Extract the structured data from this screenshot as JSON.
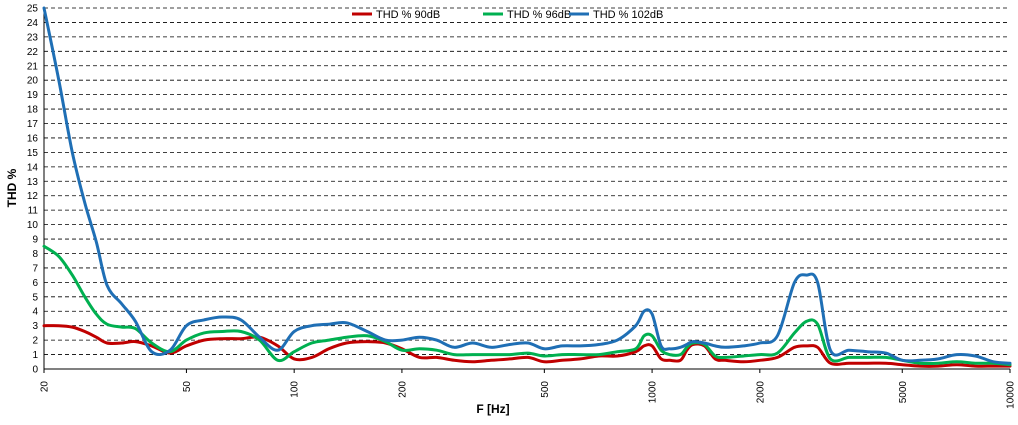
{
  "chart_data": {
    "type": "line",
    "xlabel": "F [Hz]",
    "ylabel": "THD %",
    "xscale": "log",
    "xlim": [
      20,
      10000
    ],
    "ylim": [
      0,
      25
    ],
    "x_ticks": [
      "20",
      "50",
      "100",
      "200",
      "500",
      "1000",
      "2000",
      "5000",
      "10000"
    ],
    "y_ticks": [
      "0",
      "1",
      "2",
      "3",
      "4",
      "5",
      "6",
      "7",
      "8",
      "9",
      "10",
      "11",
      "12",
      "13",
      "14",
      "15",
      "16",
      "17",
      "18",
      "19",
      "20",
      "21",
      "22",
      "23",
      "24",
      "25"
    ],
    "grid": true,
    "legend_position": "top",
    "series": [
      {
        "name": "THD % 90dB",
        "color": "#c00000",
        "x": [
          20,
          22,
          24,
          26,
          28,
          30,
          33,
          36,
          40,
          45,
          50,
          56,
          63,
          71,
          80,
          90,
          100,
          112,
          125,
          140,
          160,
          180,
          200,
          224,
          250,
          280,
          315,
          355,
          400,
          450,
          500,
          560,
          630,
          710,
          800,
          900,
          950,
          1000,
          1060,
          1120,
          1200,
          1250,
          1300,
          1400,
          1500,
          1600,
          1800,
          2000,
          2240,
          2500,
          2700,
          2900,
          3150,
          3550,
          4000,
          4500,
          5000,
          5600,
          6300,
          7100,
          8000,
          9000,
          10000
        ],
        "y": [
          3.0,
          3.0,
          2.9,
          2.6,
          2.2,
          1.8,
          1.8,
          1.9,
          1.6,
          1.1,
          1.6,
          2.0,
          2.1,
          2.1,
          2.2,
          1.6,
          0.7,
          0.8,
          1.4,
          1.8,
          1.9,
          1.8,
          1.4,
          0.8,
          0.8,
          0.6,
          0.5,
          0.6,
          0.7,
          0.8,
          0.5,
          0.6,
          0.7,
          0.9,
          0.9,
          1.2,
          1.6,
          1.6,
          0.7,
          0.6,
          0.6,
          1.3,
          1.7,
          1.6,
          0.7,
          0.6,
          0.5,
          0.6,
          0.8,
          1.5,
          1.6,
          1.5,
          0.4,
          0.4,
          0.4,
          0.4,
          0.3,
          0.2,
          0.2,
          0.3,
          0.2,
          0.2,
          0.2
        ]
      },
      {
        "name": "THD % 96dB",
        "color": "#00b050",
        "x": [
          20,
          22,
          24,
          26,
          28,
          30,
          33,
          36,
          40,
          45,
          50,
          56,
          63,
          71,
          80,
          90,
          100,
          112,
          125,
          140,
          160,
          180,
          200,
          224,
          250,
          280,
          315,
          355,
          400,
          450,
          500,
          560,
          630,
          710,
          800,
          900,
          950,
          1000,
          1060,
          1120,
          1200,
          1250,
          1300,
          1400,
          1500,
          1600,
          1800,
          2000,
          2240,
          2500,
          2700,
          2900,
          3150,
          3550,
          4000,
          4500,
          5000,
          5600,
          6300,
          7100,
          8000,
          9000,
          10000
        ],
        "y": [
          8.5,
          7.8,
          6.5,
          5.0,
          3.8,
          3.1,
          2.9,
          2.8,
          1.8,
          1.2,
          2.0,
          2.5,
          2.6,
          2.6,
          2.0,
          0.6,
          1.2,
          1.8,
          2.0,
          2.2,
          2.3,
          1.9,
          1.3,
          1.4,
          1.3,
          1.0,
          1.0,
          1.0,
          1.0,
          1.1,
          0.9,
          1.0,
          1.0,
          1.0,
          1.2,
          1.4,
          2.3,
          2.3,
          1.3,
          1.0,
          1.0,
          1.5,
          1.8,
          1.7,
          0.9,
          0.8,
          0.9,
          1.0,
          1.1,
          2.5,
          3.3,
          3.1,
          0.7,
          0.8,
          0.8,
          0.8,
          0.6,
          0.4,
          0.4,
          0.5,
          0.4,
          0.4,
          0.3
        ]
      },
      {
        "name": "THD % 102dB",
        "color": "#1f6fb5",
        "x": [
          20,
          22,
          24,
          26,
          28,
          30,
          33,
          36,
          40,
          45,
          50,
          56,
          63,
          71,
          80,
          90,
          100,
          112,
          125,
          140,
          160,
          180,
          200,
          224,
          250,
          280,
          315,
          355,
          400,
          450,
          500,
          560,
          630,
          710,
          800,
          900,
          950,
          1000,
          1060,
          1120,
          1200,
          1250,
          1300,
          1400,
          1500,
          1600,
          1800,
          2000,
          2240,
          2500,
          2700,
          2900,
          3150,
          3550,
          4000,
          4500,
          5000,
          5600,
          6300,
          7100,
          8000,
          9000,
          10000
        ],
        "y": [
          25.0,
          20.0,
          15.0,
          11.5,
          8.8,
          5.8,
          4.5,
          3.3,
          1.2,
          1.3,
          3.0,
          3.4,
          3.6,
          3.4,
          2.2,
          1.3,
          2.6,
          3.0,
          3.1,
          3.2,
          2.6,
          2.0,
          2.0,
          2.2,
          2.0,
          1.5,
          1.8,
          1.5,
          1.7,
          1.8,
          1.4,
          1.6,
          1.6,
          1.7,
          2.0,
          3.0,
          4.0,
          3.8,
          1.6,
          1.4,
          1.5,
          1.7,
          1.9,
          1.8,
          1.6,
          1.5,
          1.6,
          1.8,
          2.3,
          6.0,
          6.5,
          6.0,
          1.3,
          1.3,
          1.2,
          1.1,
          0.6,
          0.6,
          0.7,
          1.0,
          0.9,
          0.5,
          0.4
        ]
      }
    ]
  }
}
